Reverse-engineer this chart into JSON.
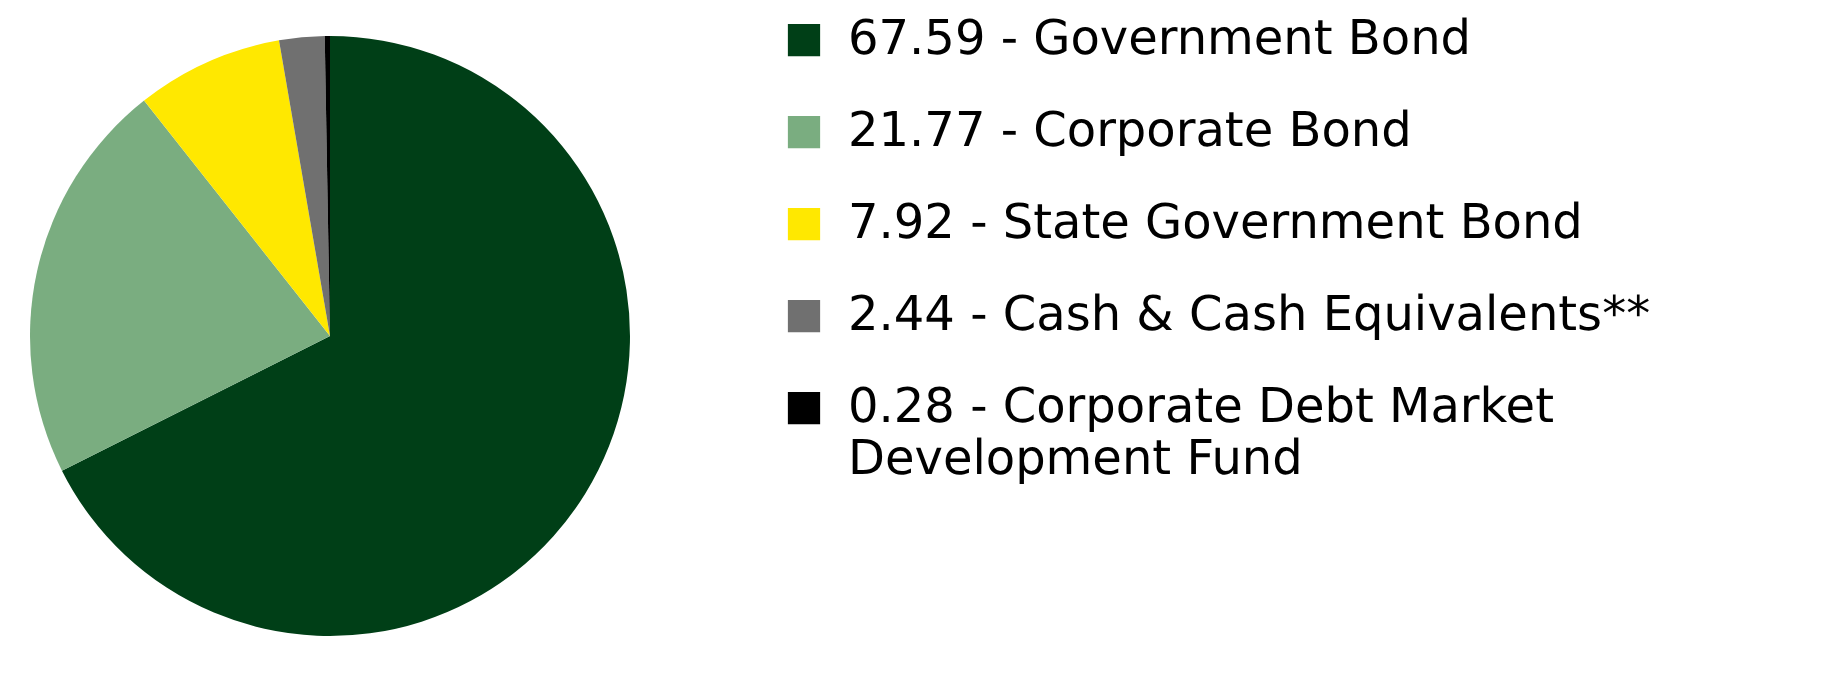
{
  "chart_data": {
    "type": "pie",
    "categories": [
      "67.59 - Government Bond",
      "21.77 - Corporate Bond",
      "7.92 - State Government Bond",
      "2.44 - Cash & Cash Equivalents**",
      "0.28 - Corporate Debt Market Development Fund"
    ],
    "values": [
      67.59,
      21.77,
      7.92,
      2.44,
      0.28
    ],
    "colors": [
      "#003f17",
      "#7aad80",
      "#ffe800",
      "#707070",
      "#000000"
    ],
    "legend": "right"
  }
}
